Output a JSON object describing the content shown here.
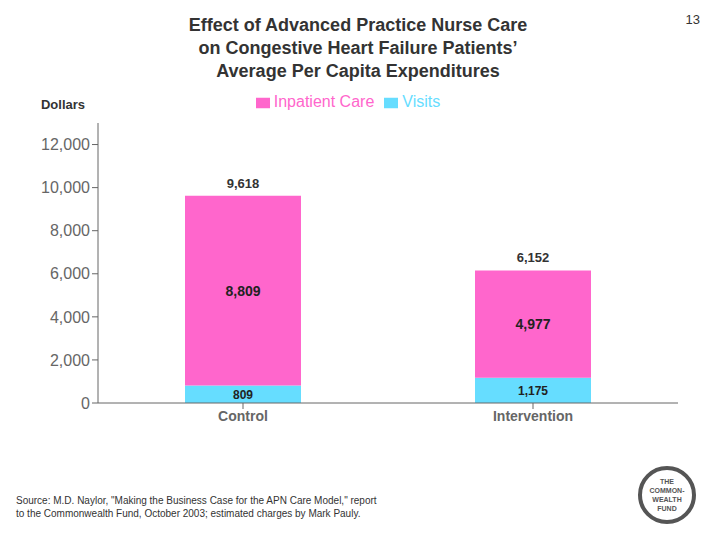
{
  "chart_data": {
    "type": "bar",
    "title": "Effect of Advanced Practice Nurse Care\non Congestive Heart Failure Patients’\nAverage Per Capita Expenditures",
    "ylabel": "Dollars",
    "categories": [
      "Control",
      "Intervention"
    ],
    "series": [
      {
        "name": "Visits",
        "color": "#66DDFF",
        "values": [
          809,
          1175
        ],
        "value_labels": [
          "809",
          "1,175"
        ]
      },
      {
        "name": "Inpatient Care",
        "color": "#FF66CC",
        "values": [
          8809,
          4977
        ],
        "value_labels": [
          "8,809",
          "4,977"
        ]
      }
    ],
    "totals": {
      "values": [
        9618,
        6152
      ],
      "value_labels": [
        "9,618",
        "6,152"
      ]
    },
    "stacked": true,
    "data_labels": true,
    "legend": "top",
    "grid": false,
    "ylim": [
      0,
      13000
    ],
    "yticks": [
      0,
      {
        "value": 2000,
        "label": "2,000"
      },
      {
        "value": 4000,
        "label": "4,000"
      },
      {
        "value": 6000,
        "label": "6,000"
      },
      {
        "value": 8000,
        "label": "8,000"
      },
      {
        "value": 10000,
        "label": "10,000"
      },
      {
        "value": 12000,
        "label": "12,000"
      }
    ],
    "annotations": {
      "page_number": "13",
      "source": "Source:  M.D. Naylor, \"Making the Business Case for the APN Care Model,\" report\nto the Commonwealth Fund, October 2003; estimated charges by Mark Pauly.",
      "logo": [
        "THE",
        "COMMON-",
        "WEALTH",
        "FUND"
      ]
    }
  }
}
